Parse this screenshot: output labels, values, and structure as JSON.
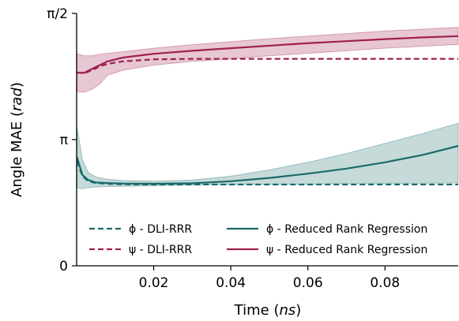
{
  "chart_data": {
    "type": "line",
    "xlabel_text": "Time",
    "xlabel_unit": "ns",
    "ylabel_text": "Angle MAE",
    "ylabel_unit": "rad",
    "xlim": [
      0.0,
      0.099
    ],
    "ylim": [
      0.0,
      1.0
    ],
    "xticks": [
      {
        "value": 0.02,
        "label": "0.02"
      },
      {
        "value": 0.04,
        "label": "0.04"
      },
      {
        "value": 0.06,
        "label": "0.06"
      },
      {
        "value": 0.08,
        "label": "0.08"
      }
    ],
    "yticks": [
      {
        "value": 0.0,
        "label": "0"
      },
      {
        "value": 0.5,
        "label": "π"
      },
      {
        "value": 1.0,
        "label": "π/2"
      }
    ],
    "legend_placement": "lower-center",
    "legend_ncol": 2,
    "series": [
      {
        "name": "ϕ - DLI-RRR",
        "color": "#1a6a6a",
        "dash": "dashed",
        "x": [
          0.0001,
          0.0015,
          0.003,
          0.005,
          0.008,
          0.012,
          0.02,
          0.04,
          0.06,
          0.08,
          0.099
        ],
        "y": [
          0.415,
          0.355,
          0.335,
          0.328,
          0.325,
          0.323,
          0.322,
          0.322,
          0.322,
          0.322,
          0.322
        ]
      },
      {
        "name": "ψ - DLI-RRR",
        "color": "#a02050",
        "dash": "dashed",
        "x": [
          0.0001,
          0.002,
          0.004,
          0.006,
          0.008,
          0.012,
          0.02,
          0.03,
          0.04,
          0.06,
          0.08,
          0.099
        ],
        "y": [
          0.765,
          0.763,
          0.775,
          0.79,
          0.8,
          0.81,
          0.818,
          0.82,
          0.82,
          0.82,
          0.82,
          0.82
        ]
      },
      {
        "name": "ϕ - Reduced Rank Regression",
        "color": "#1a6a6a",
        "dash": "solid",
        "x": [
          0.0001,
          0.0015,
          0.003,
          0.005,
          0.008,
          0.012,
          0.02,
          0.03,
          0.04,
          0.05,
          0.06,
          0.07,
          0.08,
          0.09,
          0.099
        ],
        "y": [
          0.43,
          0.36,
          0.34,
          0.33,
          0.328,
          0.326,
          0.325,
          0.327,
          0.335,
          0.348,
          0.365,
          0.385,
          0.41,
          0.44,
          0.475
        ],
        "band_low": [
          0.31,
          0.305,
          0.31,
          0.312,
          0.314,
          0.315,
          0.317,
          0.32,
          0.322,
          0.323,
          0.324,
          0.325,
          0.326,
          0.327,
          0.328
        ],
        "band_high": [
          0.55,
          0.42,
          0.37,
          0.352,
          0.343,
          0.338,
          0.335,
          0.34,
          0.355,
          0.38,
          0.41,
          0.445,
          0.485,
          0.525,
          0.565
        ]
      },
      {
        "name": "ψ - Reduced Rank Regression",
        "color": "#a02050",
        "dash": "solid",
        "x": [
          0.0001,
          0.002,
          0.004,
          0.006,
          0.008,
          0.012,
          0.02,
          0.03,
          0.04,
          0.05,
          0.06,
          0.07,
          0.08,
          0.09,
          0.099
        ],
        "y": [
          0.765,
          0.765,
          0.78,
          0.795,
          0.81,
          0.825,
          0.84,
          0.852,
          0.862,
          0.872,
          0.882,
          0.89,
          0.898,
          0.905,
          0.91
        ],
        "band_low": [
          0.69,
          0.688,
          0.7,
          0.72,
          0.755,
          0.775,
          0.795,
          0.81,
          0.82,
          0.832,
          0.842,
          0.852,
          0.862,
          0.87,
          0.877
        ],
        "band_high": [
          0.84,
          0.832,
          0.832,
          0.838,
          0.842,
          0.848,
          0.862,
          0.876,
          0.888,
          0.9,
          0.91,
          0.92,
          0.93,
          0.938,
          0.945
        ]
      }
    ]
  }
}
